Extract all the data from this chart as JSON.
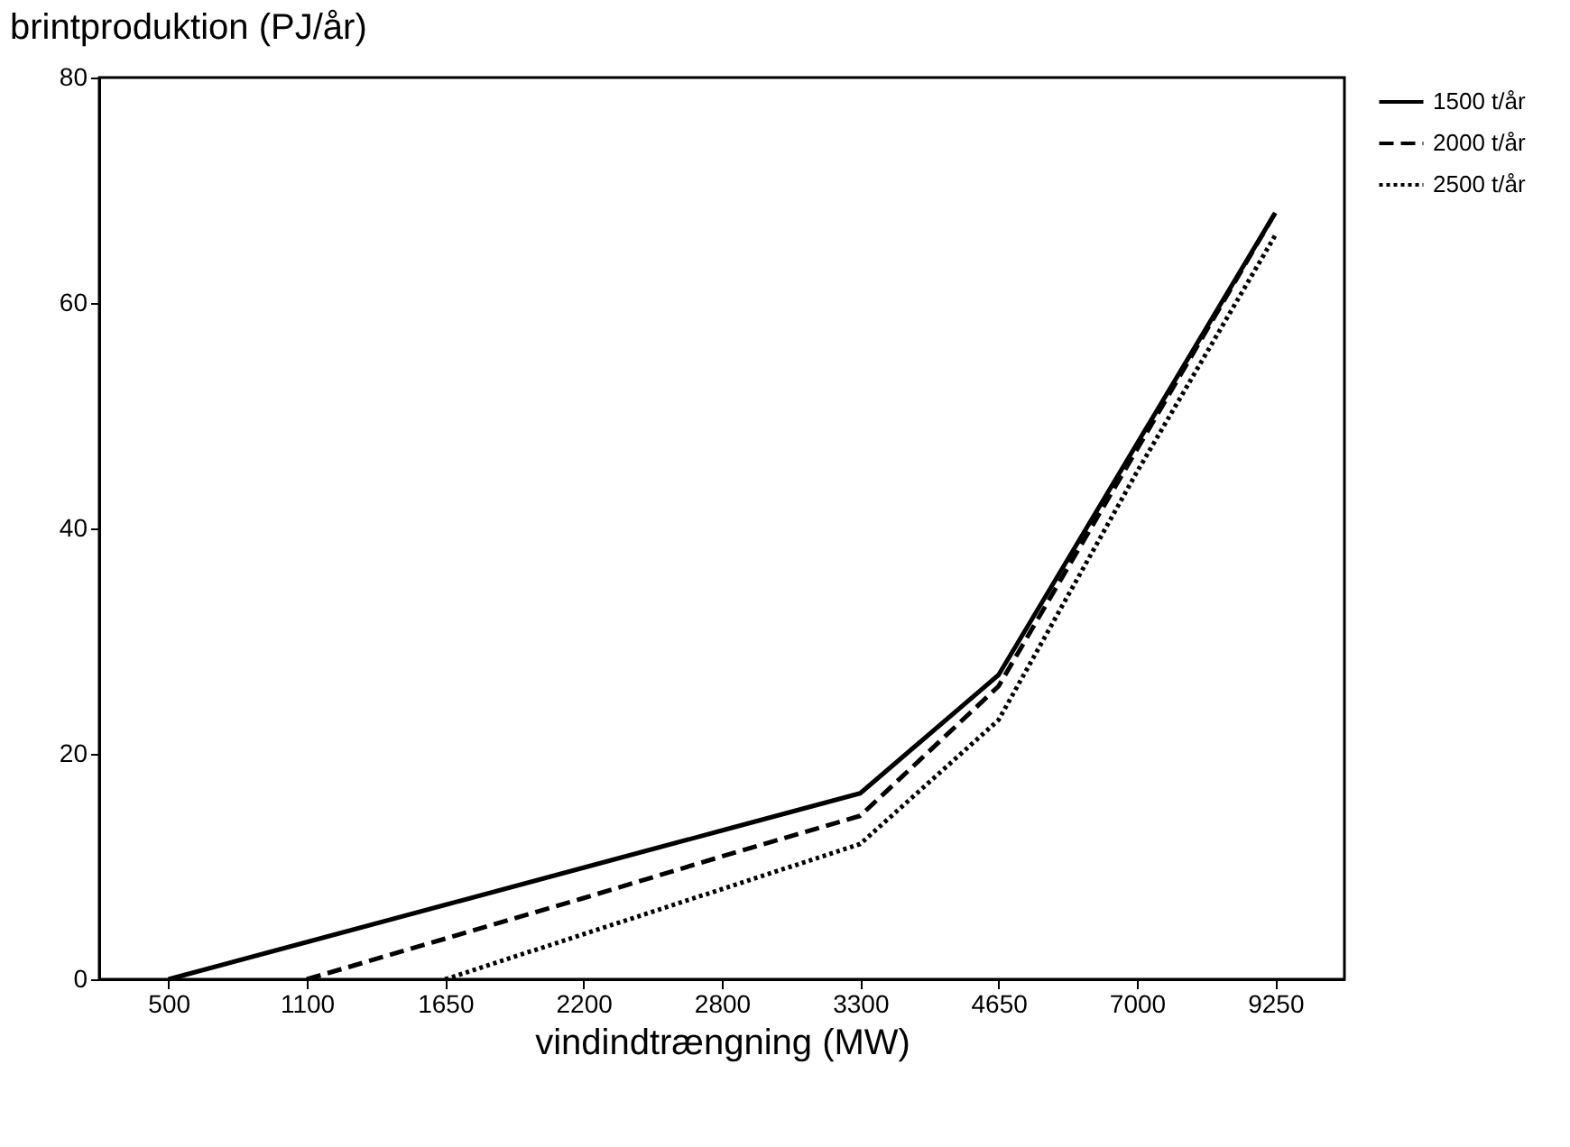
{
  "chart_data": {
    "type": "line",
    "ylabel": "brintproduktion (PJ/år)",
    "xlabel": "vindindtrængning (MW)",
    "categories": [
      "500",
      "1100",
      "1650",
      "2200",
      "2800",
      "3300",
      "4650",
      "7000",
      "9250"
    ],
    "ylim": [
      0,
      80
    ],
    "yticks": [
      0,
      20,
      40,
      60,
      80
    ],
    "grid": false,
    "legend": "top right",
    "marker": "none",
    "series": [
      {
        "name": "1500 t/år",
        "color": "#000000",
        "line_style": "solid",
        "values": [
          0,
          3.3,
          6.6,
          9.9,
          13.2,
          16.5,
          27,
          47.5,
          68
        ]
      },
      {
        "name": "2000 t/år",
        "color": "#000000",
        "line_style": "dashed",
        "values": [
          null,
          0,
          3.6,
          7.2,
          10.9,
          14.5,
          26,
          47,
          68
        ]
      },
      {
        "name": "2500 t/år",
        "color": "#000000",
        "line_style": "dotted",
        "values": [
          null,
          null,
          0,
          4,
          8,
          12,
          23,
          45,
          66
        ]
      }
    ]
  }
}
